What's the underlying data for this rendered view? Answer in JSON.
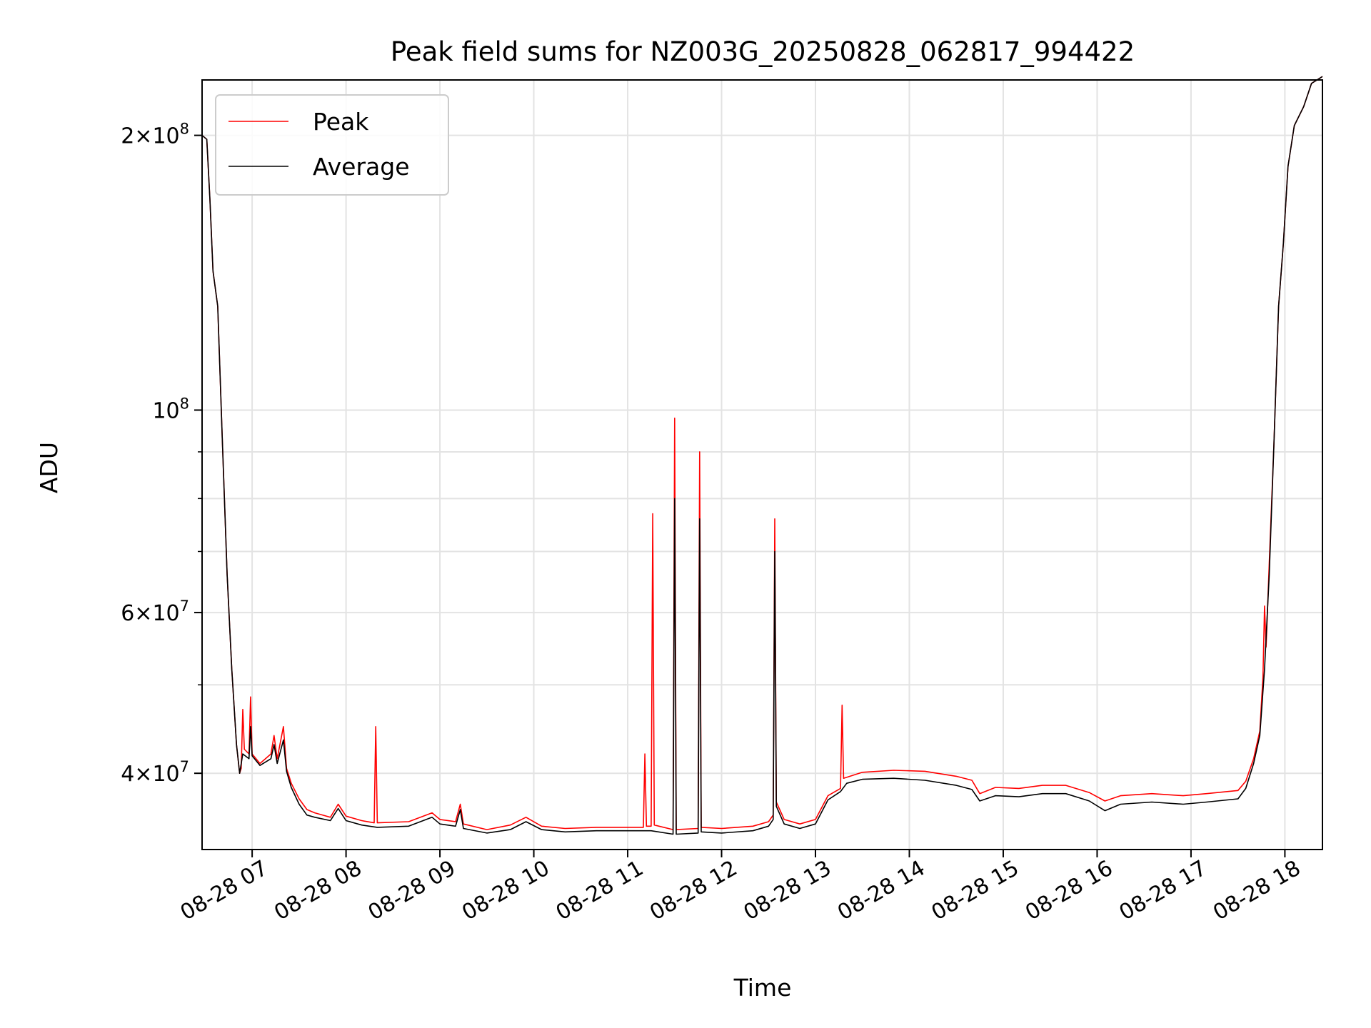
{
  "chart_data": {
    "type": "line",
    "title": "Peak field sums for NZ003G_20250828_062817_994422",
    "xlabel": "Time",
    "ylabel": "ADU",
    "y_scale": "log",
    "ylim": [
      33000000,
      230000000
    ],
    "xlim": [
      "2025-08-28 06:28",
      "2025-08-28 18:24"
    ],
    "grid": true,
    "legend_location": "upper-left",
    "x_ticks": [
      {
        "t": "2025-08-28 07:00",
        "label": "08-28 07"
      },
      {
        "t": "2025-08-28 08:00",
        "label": "08-28 08"
      },
      {
        "t": "2025-08-28 09:00",
        "label": "08-28 09"
      },
      {
        "t": "2025-08-28 10:00",
        "label": "08-28 10"
      },
      {
        "t": "2025-08-28 11:00",
        "label": "08-28 11"
      },
      {
        "t": "2025-08-28 12:00",
        "label": "08-28 12"
      },
      {
        "t": "2025-08-28 13:00",
        "label": "08-28 13"
      },
      {
        "t": "2025-08-28 14:00",
        "label": "08-28 14"
      },
      {
        "t": "2025-08-28 15:00",
        "label": "08-28 15"
      },
      {
        "t": "2025-08-28 16:00",
        "label": "08-28 16"
      },
      {
        "t": "2025-08-28 17:00",
        "label": "08-28 17"
      },
      {
        "t": "2025-08-28 18:00",
        "label": "08-28 18"
      }
    ],
    "y_ticks": [
      {
        "value": 200000000,
        "mantissa": "2",
        "exponent": "8"
      },
      {
        "value": 100000000,
        "mantissa": "",
        "exponent": "8"
      },
      {
        "value": 60000000,
        "mantissa": "6",
        "exponent": "7"
      },
      {
        "value": 40000000,
        "mantissa": "4",
        "exponent": "7"
      }
    ],
    "y_minor_ticks": [
      50000000,
      70000000,
      80000000,
      90000000
    ],
    "series": [
      {
        "name": "Peak",
        "color": "#ff0000",
        "points": [
          [
            "2025-08-28 06:28",
            200000000
          ],
          [
            "2025-08-28 06:31",
            198000000
          ],
          [
            "2025-08-28 06:33",
            170000000
          ],
          [
            "2025-08-28 06:35",
            142000000
          ],
          [
            "2025-08-28 06:38",
            130000000
          ],
          [
            "2025-08-28 06:41",
            92000000
          ],
          [
            "2025-08-28 06:44",
            66000000
          ],
          [
            "2025-08-28 06:47",
            52000000
          ],
          [
            "2025-08-28 06:50",
            43000000
          ],
          [
            "2025-08-28 06:52",
            40000000
          ],
          [
            "2025-08-28 06:53",
            40500000
          ],
          [
            "2025-08-28 06:54",
            47000000
          ],
          [
            "2025-08-28 06:55",
            42500000
          ],
          [
            "2025-08-28 06:58",
            42000000
          ],
          [
            "2025-08-28 06:59",
            48500000
          ],
          [
            "2025-08-28 07:00",
            42000000
          ],
          [
            "2025-08-28 07:05",
            41000000
          ],
          [
            "2025-08-28 07:12",
            42000000
          ],
          [
            "2025-08-28 07:14",
            44000000
          ],
          [
            "2025-08-28 07:16",
            41500000
          ],
          [
            "2025-08-28 07:20",
            45000000
          ],
          [
            "2025-08-28 07:22",
            40500000
          ],
          [
            "2025-08-28 07:25",
            39000000
          ],
          [
            "2025-08-28 07:30",
            37500000
          ],
          [
            "2025-08-28 07:35",
            36500000
          ],
          [
            "2025-08-28 07:40",
            36200000
          ],
          [
            "2025-08-28 07:50",
            35800000
          ],
          [
            "2025-08-28 07:55",
            37000000
          ],
          [
            "2025-08-28 08:00",
            35900000
          ],
          [
            "2025-08-28 08:10",
            35500000
          ],
          [
            "2025-08-28 08:18",
            35300000
          ],
          [
            "2025-08-28 08:19",
            45000000
          ],
          [
            "2025-08-28 08:20",
            35300000
          ],
          [
            "2025-08-28 08:40",
            35400000
          ],
          [
            "2025-08-28 08:55",
            36200000
          ],
          [
            "2025-08-28 09:00",
            35600000
          ],
          [
            "2025-08-28 09:10",
            35400000
          ],
          [
            "2025-08-28 09:13",
            37000000
          ],
          [
            "2025-08-28 09:15",
            35200000
          ],
          [
            "2025-08-28 09:30",
            34700000
          ],
          [
            "2025-08-28 09:45",
            35100000
          ],
          [
            "2025-08-28 09:55",
            35800000
          ],
          [
            "2025-08-28 10:05",
            35000000
          ],
          [
            "2025-08-28 10:20",
            34800000
          ],
          [
            "2025-08-28 10:40",
            34900000
          ],
          [
            "2025-08-28 11:10",
            34900000
          ],
          [
            "2025-08-28 11:11",
            42000000
          ],
          [
            "2025-08-28 11:12",
            35000000
          ],
          [
            "2025-08-28 11:15",
            35000000
          ],
          [
            "2025-08-28 11:16",
            77000000
          ],
          [
            "2025-08-28 11:17",
            35100000
          ],
          [
            "2025-08-28 11:29",
            34700000
          ],
          [
            "2025-08-28 11:30",
            98000000
          ],
          [
            "2025-08-28 11:31",
            34700000
          ],
          [
            "2025-08-28 11:45",
            34800000
          ],
          [
            "2025-08-28 11:46",
            90000000
          ],
          [
            "2025-08-28 11:47",
            34900000
          ],
          [
            "2025-08-28 12:00",
            34800000
          ],
          [
            "2025-08-28 12:20",
            35000000
          ],
          [
            "2025-08-28 12:30",
            35400000
          ],
          [
            "2025-08-28 12:33",
            36000000
          ],
          [
            "2025-08-28 12:34",
            76000000
          ],
          [
            "2025-08-28 12:35",
            37200000
          ],
          [
            "2025-08-28 12:40",
            35600000
          ],
          [
            "2025-08-28 12:50",
            35200000
          ],
          [
            "2025-08-28 13:00",
            35600000
          ],
          [
            "2025-08-28 13:08",
            37800000
          ],
          [
            "2025-08-28 13:16",
            38500000
          ],
          [
            "2025-08-28 13:17",
            47500000
          ],
          [
            "2025-08-28 13:18",
            39500000
          ],
          [
            "2025-08-28 13:30",
            40100000
          ],
          [
            "2025-08-28 13:50",
            40300000
          ],
          [
            "2025-08-28 14:10",
            40200000
          ],
          [
            "2025-08-28 14:30",
            39700000
          ],
          [
            "2025-08-28 14:40",
            39300000
          ],
          [
            "2025-08-28 14:45",
            38000000
          ],
          [
            "2025-08-28 14:55",
            38600000
          ],
          [
            "2025-08-28 15:10",
            38500000
          ],
          [
            "2025-08-28 15:25",
            38800000
          ],
          [
            "2025-08-28 15:40",
            38800000
          ],
          [
            "2025-08-28 15:55",
            38100000
          ],
          [
            "2025-08-28 16:05",
            37300000
          ],
          [
            "2025-08-28 16:15",
            37800000
          ],
          [
            "2025-08-28 16:35",
            38000000
          ],
          [
            "2025-08-28 16:55",
            37800000
          ],
          [
            "2025-08-28 17:10",
            38000000
          ],
          [
            "2025-08-28 17:30",
            38300000
          ],
          [
            "2025-08-28 17:35",
            39200000
          ],
          [
            "2025-08-28 17:40",
            41500000
          ],
          [
            "2025-08-28 17:44",
            44500000
          ],
          [
            "2025-08-28 17:46",
            51000000
          ],
          [
            "2025-08-28 17:47",
            61000000
          ],
          [
            "2025-08-28 17:48",
            55000000
          ],
          [
            "2025-08-28 17:50",
            68000000
          ],
          [
            "2025-08-28 17:53",
            92000000
          ],
          [
            "2025-08-28 17:56",
            130000000
          ],
          [
            "2025-08-28 17:59",
            152000000
          ],
          [
            "2025-08-28 18:02",
            185000000
          ],
          [
            "2025-08-28 18:06",
            205000000
          ],
          [
            "2025-08-28 18:12",
            215000000
          ],
          [
            "2025-08-28 18:17",
            228000000
          ],
          [
            "2025-08-28 18:24",
            232000000
          ]
        ]
      },
      {
        "name": "Average",
        "color": "#000000",
        "points": [
          [
            "2025-08-28 06:28",
            200000000
          ],
          [
            "2025-08-28 06:31",
            198000000
          ],
          [
            "2025-08-28 06:33",
            170000000
          ],
          [
            "2025-08-28 06:35",
            142000000
          ],
          [
            "2025-08-28 06:38",
            130000000
          ],
          [
            "2025-08-28 06:41",
            92000000
          ],
          [
            "2025-08-28 06:44",
            66000000
          ],
          [
            "2025-08-28 06:47",
            52000000
          ],
          [
            "2025-08-28 06:50",
            43000000
          ],
          [
            "2025-08-28 06:52",
            40000000
          ],
          [
            "2025-08-28 06:54",
            42000000
          ],
          [
            "2025-08-28 06:58",
            41500000
          ],
          [
            "2025-08-28 06:59",
            45000000
          ],
          [
            "2025-08-28 07:00",
            41800000
          ],
          [
            "2025-08-28 07:05",
            40800000
          ],
          [
            "2025-08-28 07:12",
            41500000
          ],
          [
            "2025-08-28 07:14",
            43000000
          ],
          [
            "2025-08-28 07:16",
            41000000
          ],
          [
            "2025-08-28 07:20",
            43500000
          ],
          [
            "2025-08-28 07:22",
            40200000
          ],
          [
            "2025-08-28 07:25",
            38600000
          ],
          [
            "2025-08-28 07:30",
            37000000
          ],
          [
            "2025-08-28 07:35",
            36000000
          ],
          [
            "2025-08-28 07:40",
            35800000
          ],
          [
            "2025-08-28 07:50",
            35500000
          ],
          [
            "2025-08-28 07:55",
            36600000
          ],
          [
            "2025-08-28 08:00",
            35500000
          ],
          [
            "2025-08-28 08:10",
            35100000
          ],
          [
            "2025-08-28 08:20",
            34900000
          ],
          [
            "2025-08-28 08:40",
            35000000
          ],
          [
            "2025-08-28 08:55",
            35800000
          ],
          [
            "2025-08-28 09:00",
            35200000
          ],
          [
            "2025-08-28 09:10",
            35000000
          ],
          [
            "2025-08-28 09:13",
            36500000
          ],
          [
            "2025-08-28 09:15",
            34800000
          ],
          [
            "2025-08-28 09:30",
            34400000
          ],
          [
            "2025-08-28 09:45",
            34700000
          ],
          [
            "2025-08-28 09:55",
            35400000
          ],
          [
            "2025-08-28 10:05",
            34700000
          ],
          [
            "2025-08-28 10:20",
            34500000
          ],
          [
            "2025-08-28 10:40",
            34600000
          ],
          [
            "2025-08-28 11:15",
            34600000
          ],
          [
            "2025-08-28 11:29",
            34300000
          ],
          [
            "2025-08-28 11:30",
            80000000
          ],
          [
            "2025-08-28 11:31",
            34300000
          ],
          [
            "2025-08-28 11:45",
            34400000
          ],
          [
            "2025-08-28 11:46",
            76000000
          ],
          [
            "2025-08-28 11:47",
            34500000
          ],
          [
            "2025-08-28 12:00",
            34400000
          ],
          [
            "2025-08-28 12:20",
            34600000
          ],
          [
            "2025-08-28 12:30",
            35000000
          ],
          [
            "2025-08-28 12:33",
            35600000
          ],
          [
            "2025-08-28 12:34",
            70000000
          ],
          [
            "2025-08-28 12:35",
            36800000
          ],
          [
            "2025-08-28 12:40",
            35200000
          ],
          [
            "2025-08-28 12:50",
            34800000
          ],
          [
            "2025-08-28 13:00",
            35200000
          ],
          [
            "2025-08-28 13:08",
            37400000
          ],
          [
            "2025-08-28 13:16",
            38200000
          ],
          [
            "2025-08-28 13:20",
            39000000
          ],
          [
            "2025-08-28 13:30",
            39400000
          ],
          [
            "2025-08-28 13:50",
            39500000
          ],
          [
            "2025-08-28 14:10",
            39300000
          ],
          [
            "2025-08-28 14:30",
            38800000
          ],
          [
            "2025-08-28 14:40",
            38400000
          ],
          [
            "2025-08-28 14:45",
            37300000
          ],
          [
            "2025-08-28 14:55",
            37800000
          ],
          [
            "2025-08-28 15:10",
            37700000
          ],
          [
            "2025-08-28 15:25",
            38000000
          ],
          [
            "2025-08-28 15:40",
            38000000
          ],
          [
            "2025-08-28 15:55",
            37300000
          ],
          [
            "2025-08-28 16:05",
            36400000
          ],
          [
            "2025-08-28 16:15",
            37000000
          ],
          [
            "2025-08-28 16:35",
            37200000
          ],
          [
            "2025-08-28 16:55",
            37000000
          ],
          [
            "2025-08-28 17:10",
            37200000
          ],
          [
            "2025-08-28 17:30",
            37500000
          ],
          [
            "2025-08-28 17:35",
            38500000
          ],
          [
            "2025-08-28 17:40",
            41000000
          ],
          [
            "2025-08-28 17:44",
            44000000
          ],
          [
            "2025-08-28 17:47",
            52000000
          ],
          [
            "2025-08-28 17:50",
            66000000
          ],
          [
            "2025-08-28 17:53",
            92000000
          ],
          [
            "2025-08-28 17:56",
            130000000
          ],
          [
            "2025-08-28 17:59",
            152000000
          ],
          [
            "2025-08-28 18:02",
            185000000
          ],
          [
            "2025-08-28 18:06",
            205000000
          ],
          [
            "2025-08-28 18:12",
            215000000
          ],
          [
            "2025-08-28 18:17",
            228000000
          ],
          [
            "2025-08-28 18:24",
            232000000
          ]
        ]
      }
    ]
  }
}
